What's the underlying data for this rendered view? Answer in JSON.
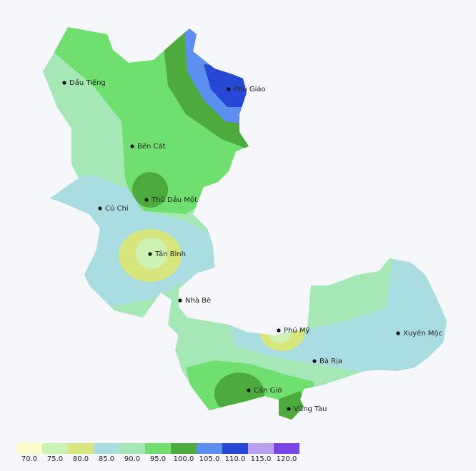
{
  "map": {
    "places": [
      {
        "name": "Dầu Tiếng"
      },
      {
        "name": "Phú Giáo"
      },
      {
        "name": "Bến Cát"
      },
      {
        "name": "Thủ Dầu Một"
      },
      {
        "name": "Củ Chi"
      },
      {
        "name": "Tân Bình"
      },
      {
        "name": "Nhà Bè"
      },
      {
        "name": "Phú Mỹ"
      },
      {
        "name": "Xuyên Mộc"
      },
      {
        "name": "Bà Rịa"
      },
      {
        "name": "Cần Giờ"
      },
      {
        "name": "Vũng Tàu"
      }
    ],
    "legend": {
      "ticks": [
        {
          "value": 70,
          "label": "70.0"
        },
        {
          "value": 75,
          "label": "75.0"
        },
        {
          "value": 80,
          "label": "80.0"
        },
        {
          "value": 85,
          "label": "85.0"
        },
        {
          "value": 90,
          "label": "90.0"
        },
        {
          "value": 95,
          "label": "95.0"
        },
        {
          "value": 100,
          "label": "100.0"
        },
        {
          "value": 105,
          "label": "105.0"
        },
        {
          "value": 110,
          "label": "110.0"
        },
        {
          "value": 115,
          "label": "115.0"
        },
        {
          "value": 120,
          "label": "120.0"
        }
      ],
      "colors": [
        "#fbfdcb",
        "#ccf3b4",
        "#d8e67e",
        "#a9dde1",
        "#a6e7b6",
        "#6fe070",
        "#4cab3c",
        "#5d8ff0",
        "#2748d4",
        "#bba0f0",
        "#7a44e6"
      ]
    }
  }
}
